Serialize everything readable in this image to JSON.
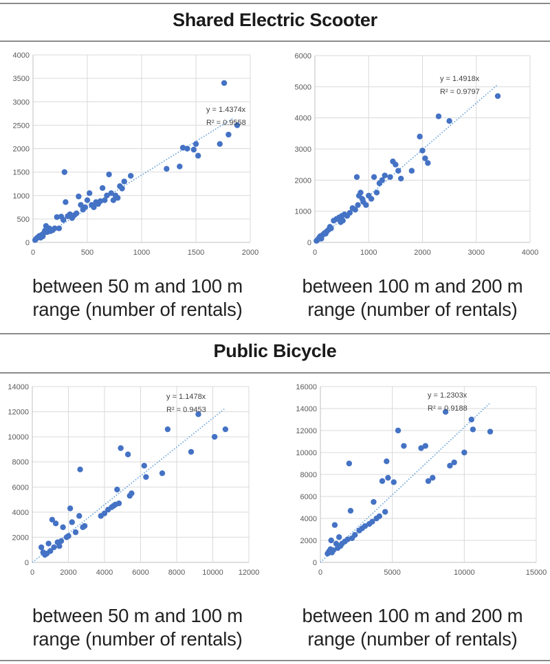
{
  "sections": [
    {
      "title": "Shared Electric Scooter"
    },
    {
      "title": "Public Bicycle"
    }
  ],
  "colors": {
    "marker": "#4472c4",
    "trendline": "#5b9bd5",
    "grid": "#d9d9d9",
    "axis": "#bfbfbf",
    "tick_text": "#595959",
    "rule": "#8a8a8a"
  },
  "chart_data": [
    {
      "type": "scatter",
      "section": "Shared Electric Scooter",
      "caption_line1": "between 50 m and 100 m",
      "caption_line2": "range (number of rentals)",
      "xlim": [
        0,
        2000
      ],
      "ylim": [
        0,
        4000
      ],
      "xticks": [
        0,
        500,
        1000,
        1500,
        2000
      ],
      "yticks": [
        0,
        500,
        1000,
        1500,
        2000,
        2500,
        3000,
        3500,
        4000
      ],
      "trendline": {
        "slope": 1.4374,
        "x_end": 1850
      },
      "equation": "y = 1.4374x",
      "r2": "R² = 0.9558",
      "points": [
        [
          20,
          50
        ],
        [
          30,
          80
        ],
        [
          40,
          100
        ],
        [
          50,
          120
        ],
        [
          60,
          140
        ],
        [
          70,
          100
        ],
        [
          80,
          160
        ],
        [
          90,
          130
        ],
        [
          100,
          200
        ],
        [
          110,
          250
        ],
        [
          120,
          350
        ],
        [
          130,
          220
        ],
        [
          140,
          280
        ],
        [
          150,
          300
        ],
        [
          160,
          240
        ],
        [
          180,
          260
        ],
        [
          200,
          300
        ],
        [
          220,
          540
        ],
        [
          240,
          300
        ],
        [
          260,
          550
        ],
        [
          280,
          480
        ],
        [
          290,
          1500
        ],
        [
          300,
          860
        ],
        [
          320,
          560
        ],
        [
          340,
          600
        ],
        [
          360,
          520
        ],
        [
          380,
          580
        ],
        [
          400,
          620
        ],
        [
          420,
          980
        ],
        [
          440,
          800
        ],
        [
          460,
          700
        ],
        [
          480,
          750
        ],
        [
          500,
          900
        ],
        [
          520,
          1050
        ],
        [
          540,
          800
        ],
        [
          560,
          750
        ],
        [
          580,
          860
        ],
        [
          600,
          820
        ],
        [
          620,
          880
        ],
        [
          640,
          1160
        ],
        [
          660,
          900
        ],
        [
          680,
          1000
        ],
        [
          700,
          1450
        ],
        [
          720,
          1050
        ],
        [
          740,
          900
        ],
        [
          760,
          1000
        ],
        [
          780,
          950
        ],
        [
          800,
          1200
        ],
        [
          820,
          1150
        ],
        [
          840,
          1300
        ],
        [
          900,
          1420
        ],
        [
          1230,
          1570
        ],
        [
          1350,
          1620
        ],
        [
          1380,
          2020
        ],
        [
          1420,
          2000
        ],
        [
          1480,
          1980
        ],
        [
          1500,
          2100
        ],
        [
          1520,
          1850
        ],
        [
          1720,
          2100
        ],
        [
          1760,
          3400
        ],
        [
          1800,
          2300
        ],
        [
          1880,
          2500
        ]
      ]
    },
    {
      "type": "scatter",
      "section": "Shared Electric Scooter",
      "caption_line1": "between 100 m and 200 m",
      "caption_line2": "range (number of rentals)",
      "xlim": [
        0,
        4000
      ],
      "ylim": [
        0,
        6000
      ],
      "xticks": [
        0,
        1000,
        2000,
        3000,
        4000
      ],
      "yticks": [
        0,
        1000,
        2000,
        3000,
        4000,
        5000,
        6000
      ],
      "trendline": {
        "slope": 1.4918,
        "x_end": 3400
      },
      "equation": "y = 1.4918x",
      "r2": "R² = 0.9797",
      "points": [
        [
          30,
          50
        ],
        [
          60,
          100
        ],
        [
          80,
          150
        ],
        [
          100,
          200
        ],
        [
          120,
          120
        ],
        [
          150,
          250
        ],
        [
          180,
          300
        ],
        [
          200,
          280
        ],
        [
          220,
          350
        ],
        [
          250,
          400
        ],
        [
          280,
          500
        ],
        [
          300,
          450
        ],
        [
          350,
          700
        ],
        [
          400,
          750
        ],
        [
          450,
          800
        ],
        [
          480,
          650
        ],
        [
          500,
          850
        ],
        [
          520,
          700
        ],
        [
          550,
          900
        ],
        [
          600,
          850
        ],
        [
          650,
          950
        ],
        [
          700,
          1100
        ],
        [
          750,
          1050
        ],
        [
          780,
          2100
        ],
        [
          800,
          1200
        ],
        [
          820,
          1500
        ],
        [
          850,
          1600
        ],
        [
          880,
          1400
        ],
        [
          900,
          1300
        ],
        [
          950,
          1200
        ],
        [
          1000,
          1500
        ],
        [
          1050,
          1400
        ],
        [
          1100,
          2100
        ],
        [
          1150,
          1600
        ],
        [
          1200,
          1900
        ],
        [
          1250,
          2000
        ],
        [
          1300,
          2150
        ],
        [
          1400,
          2100
        ],
        [
          1450,
          2600
        ],
        [
          1500,
          2500
        ],
        [
          1550,
          2300
        ],
        [
          1600,
          2050
        ],
        [
          1800,
          2300
        ],
        [
          1950,
          3400
        ],
        [
          2000,
          2950
        ],
        [
          2050,
          2700
        ],
        [
          2100,
          2550
        ],
        [
          2300,
          4050
        ],
        [
          2500,
          3900
        ],
        [
          3400,
          4700
        ]
      ]
    },
    {
      "type": "scatter",
      "section": "Public Bicycle",
      "caption_line1": "between 50 m and 100 m",
      "caption_line2": "range (number of rentals)",
      "xlim": [
        0,
        12000
      ],
      "ylim": [
        0,
        14000
      ],
      "xticks": [
        0,
        2000,
        4000,
        6000,
        8000,
        10000,
        12000
      ],
      "yticks": [
        0,
        2000,
        4000,
        6000,
        8000,
        10000,
        12000,
        14000
      ],
      "trendline": {
        "slope": 1.1478,
        "x_end": 10700
      },
      "equation": "y = 1.1478x",
      "r2": "R² = 0.9453",
      "points": [
        [
          500,
          1200
        ],
        [
          600,
          800
        ],
        [
          700,
          600
        ],
        [
          800,
          700
        ],
        [
          900,
          1500
        ],
        [
          1000,
          900
        ],
        [
          1100,
          3400
        ],
        [
          1200,
          1200
        ],
        [
          1300,
          3100
        ],
        [
          1400,
          1600
        ],
        [
          1500,
          1300
        ],
        [
          1600,
          1700
        ],
        [
          1700,
          2800
        ],
        [
          1900,
          2000
        ],
        [
          2000,
          2100
        ],
        [
          2100,
          4300
        ],
        [
          2200,
          3200
        ],
        [
          2400,
          2400
        ],
        [
          2600,
          3700
        ],
        [
          2650,
          7400
        ],
        [
          2800,
          2800
        ],
        [
          2900,
          2900
        ],
        [
          3800,
          3700
        ],
        [
          4000,
          3900
        ],
        [
          4200,
          4200
        ],
        [
          4400,
          4400
        ],
        [
          4500,
          4500
        ],
        [
          4600,
          4600
        ],
        [
          4700,
          5800
        ],
        [
          4800,
          4700
        ],
        [
          4900,
          9100
        ],
        [
          5300,
          8600
        ],
        [
          5400,
          5300
        ],
        [
          5500,
          5500
        ],
        [
          6200,
          7700
        ],
        [
          6300,
          6800
        ],
        [
          7200,
          7100
        ],
        [
          7500,
          10600
        ],
        [
          8800,
          8800
        ],
        [
          9200,
          11800
        ],
        [
          10100,
          10000
        ],
        [
          10700,
          10600
        ]
      ]
    },
    {
      "type": "scatter",
      "section": "Public Bicycle",
      "caption_line1": "between 100 m and 200 m",
      "caption_line2": "range (number of rentals)",
      "xlim": [
        0,
        15000
      ],
      "ylim": [
        0,
        16000
      ],
      "xticks": [
        0,
        5000,
        10000,
        15000
      ],
      "yticks": [
        0,
        2000,
        4000,
        6000,
        8000,
        10000,
        12000,
        14000,
        16000
      ],
      "trendline": {
        "slope": 1.2303,
        "x_end": 11800
      },
      "equation": "y = 1.2303x",
      "r2": "R² = 0.9188",
      "points": [
        [
          500,
          800
        ],
        [
          600,
          1000
        ],
        [
          700,
          1200
        ],
        [
          750,
          2000
        ],
        [
          800,
          900
        ],
        [
          900,
          1100
        ],
        [
          1000,
          3400
        ],
        [
          1100,
          1700
        ],
        [
          1200,
          1300
        ],
        [
          1300,
          2300
        ],
        [
          1400,
          1500
        ],
        [
          1500,
          1700
        ],
        [
          1700,
          1900
        ],
        [
          1900,
          2100
        ],
        [
          2000,
          9000
        ],
        [
          2100,
          4700
        ],
        [
          2200,
          2200
        ],
        [
          2400,
          2500
        ],
        [
          2700,
          2900
        ],
        [
          2900,
          3100
        ],
        [
          3100,
          3300
        ],
        [
          3400,
          3500
        ],
        [
          3600,
          3700
        ],
        [
          3700,
          5500
        ],
        [
          3900,
          4000
        ],
        [
          4100,
          4200
        ],
        [
          4300,
          7400
        ],
        [
          4500,
          4600
        ],
        [
          4600,
          9200
        ],
        [
          4700,
          7700
        ],
        [
          5100,
          7300
        ],
        [
          5400,
          12000
        ],
        [
          5800,
          10600
        ],
        [
          7000,
          10400
        ],
        [
          7300,
          10600
        ],
        [
          7500,
          7400
        ],
        [
          7800,
          7700
        ],
        [
          8700,
          13700
        ],
        [
          9000,
          8800
        ],
        [
          9300,
          9100
        ],
        [
          10000,
          10000
        ],
        [
          10500,
          13000
        ],
        [
          10600,
          12100
        ],
        [
          11800,
          11900
        ]
      ]
    }
  ]
}
